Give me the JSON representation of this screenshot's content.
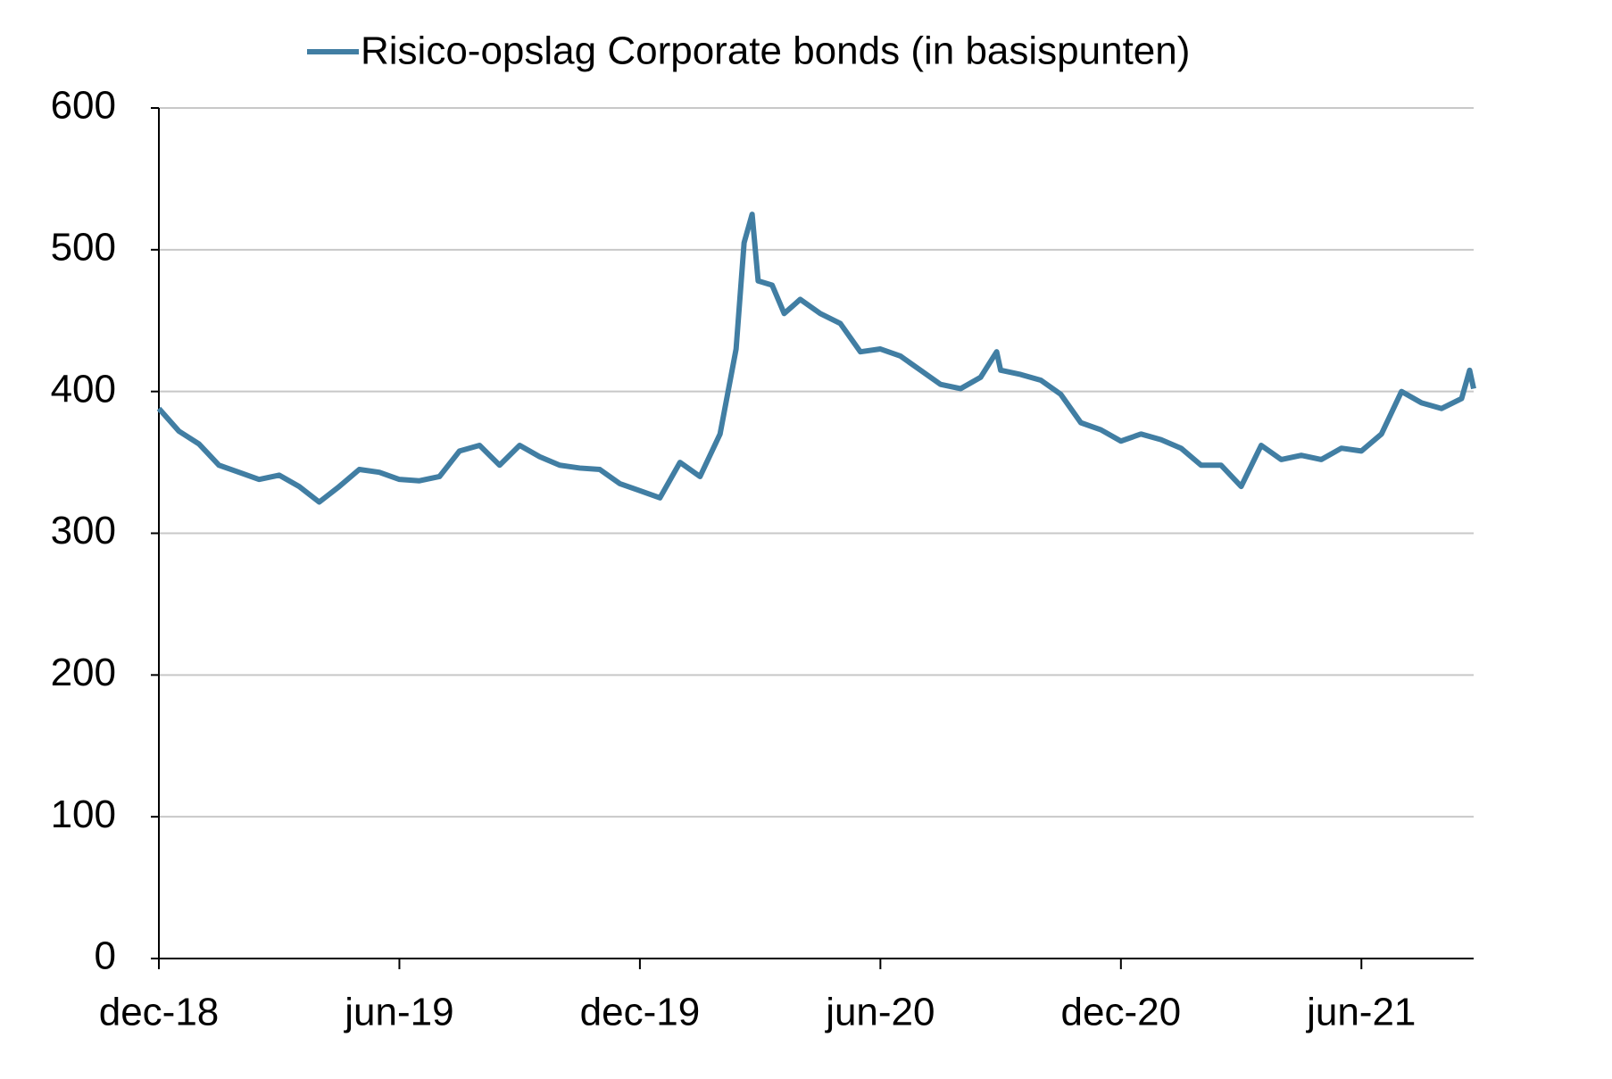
{
  "chart_data": {
    "type": "line",
    "x": [
      0,
      0.5,
      1,
      1.5,
      2,
      2.5,
      3,
      3.5,
      4,
      4.5,
      5,
      5.5,
      6,
      6.5,
      7,
      7.5,
      8,
      8.5,
      9,
      9.5,
      10,
      10.5,
      11,
      11.5,
      12,
      12.5,
      13,
      13.5,
      14,
      14.4,
      14.6,
      14.8,
      14.95,
      15.3,
      15.6,
      16,
      16.5,
      17,
      17.5,
      18,
      18.5,
      19,
      19.5,
      20,
      20.5,
      20.9,
      21,
      21.5,
      22,
      22.5,
      23,
      23.5,
      24,
      24.5,
      25,
      25.5,
      26,
      26.5,
      27,
      27.5,
      28,
      28.5,
      29,
      29.5,
      30,
      30.5,
      31,
      31.5,
      32,
      32.5,
      32.7,
      32.8
    ],
    "series": [
      {
        "name": "Risico-opslag Corporate bonds (in basispunten)",
        "color": "#417ea3",
        "values": [
          388,
          372,
          363,
          348,
          343,
          338,
          341,
          333,
          322,
          333,
          345,
          343,
          338,
          337,
          340,
          358,
          362,
          348,
          362,
          354,
          348,
          346,
          345,
          335,
          330,
          325,
          350,
          340,
          370,
          430,
          505,
          525,
          478,
          475,
          455,
          465,
          455,
          448,
          428,
          430,
          425,
          415,
          405,
          402,
          410,
          428,
          415,
          412,
          408,
          398,
          378,
          373,
          365,
          370,
          366,
          360,
          348,
          348,
          333,
          362,
          352,
          355,
          352,
          360,
          358,
          370,
          400,
          392,
          388,
          395,
          415,
          402
        ]
      }
    ],
    "xlim": [
      0,
      32.8
    ],
    "xticks": [
      {
        "value": 0,
        "label": "dec-18"
      },
      {
        "value": 6,
        "label": "jun-19"
      },
      {
        "value": 12,
        "label": "dec-19"
      },
      {
        "value": 18,
        "label": "jun-20"
      },
      {
        "value": 24,
        "label": "dec-20"
      },
      {
        "value": 30,
        "label": "jun-21"
      }
    ],
    "ylim": [
      0,
      600
    ],
    "yticks": [
      0,
      100,
      200,
      300,
      400,
      500,
      600
    ],
    "grid": true,
    "legend": "top"
  }
}
